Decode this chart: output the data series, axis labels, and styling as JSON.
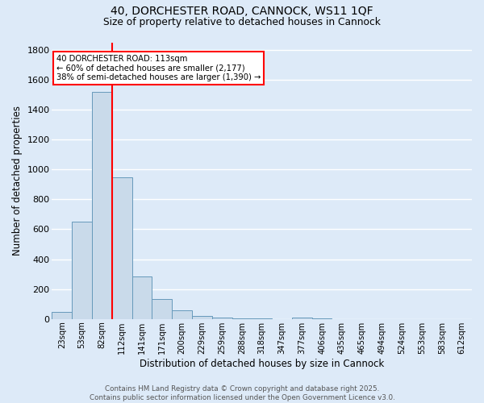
{
  "title_line1": "40, DORCHESTER ROAD, CANNOCK, WS11 1QF",
  "title_line2": "Size of property relative to detached houses in Cannock",
  "xlabel": "Distribution of detached houses by size in Cannock",
  "ylabel": "Number of detached properties",
  "bar_labels": [
    "23sqm",
    "53sqm",
    "82sqm",
    "112sqm",
    "141sqm",
    "171sqm",
    "200sqm",
    "229sqm",
    "259sqm",
    "288sqm",
    "318sqm",
    "347sqm",
    "377sqm",
    "406sqm",
    "435sqm",
    "465sqm",
    "494sqm",
    "524sqm",
    "553sqm",
    "583sqm",
    "612sqm"
  ],
  "bar_values": [
    45,
    650,
    1520,
    950,
    285,
    135,
    60,
    20,
    8,
    4,
    2,
    1,
    12,
    2,
    0,
    0,
    0,
    0,
    0,
    0,
    0
  ],
  "bar_color": "#c9daea",
  "bar_edge_color": "#6699bb",
  "vline_color": "red",
  "annotation_text": "40 DORCHESTER ROAD: 113sqm\n← 60% of detached houses are smaller (2,177)\n38% of semi-detached houses are larger (1,390) →",
  "annotation_box_color": "white",
  "annotation_box_edge_color": "red",
  "ylim": [
    0,
    1850
  ],
  "yticks": [
    0,
    200,
    400,
    600,
    800,
    1000,
    1200,
    1400,
    1600,
    1800
  ],
  "background_color": "#ddeaf8",
  "grid_color": "white",
  "footer_line1": "Contains HM Land Registry data © Crown copyright and database right 2025.",
  "footer_line2": "Contains public sector information licensed under the Open Government Licence v3.0."
}
